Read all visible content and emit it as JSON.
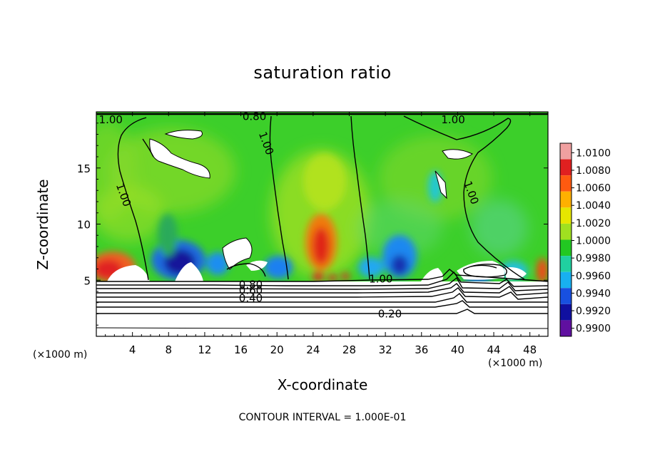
{
  "chart_data": {
    "type": "heatmap",
    "title": "saturation ratio",
    "xlabel": "X-coordinate",
    "ylabel": "Z-coordinate",
    "x_unit_label": "(×1000 m)",
    "x_unit_label_right": "(×1000 m)",
    "xlim": [
      0,
      50
    ],
    "ylim": [
      0,
      20
    ],
    "x_ticks": [
      4,
      8,
      12,
      16,
      20,
      24,
      28,
      32,
      36,
      40,
      44,
      48
    ],
    "y_ticks": [
      5,
      10,
      15
    ],
    "colorbar": {
      "levels": [
        "1.0100",
        "1.0080",
        "1.0060",
        "1.0040",
        "1.0020",
        "1.0000",
        "0.9980",
        "0.9960",
        "0.9940",
        "0.9920",
        "0.9900"
      ],
      "colors": [
        "#f0a0a0",
        "#e02020",
        "#ff5a10",
        "#ffb000",
        "#e6e600",
        "#a0e020",
        "#22c822",
        "#20d0a0",
        "#18b0f0",
        "#1850e0",
        "#1010a0",
        "#6010a0"
      ]
    },
    "contour_labels": [
      {
        "text": "1.00",
        "x": 1.6,
        "z": 19.3
      },
      {
        "text": "0.80",
        "x": 17.5,
        "z": 19.6
      },
      {
        "text": "1.00",
        "x": 18.8,
        "z": 17.2
      },
      {
        "text": "1.00",
        "x": 39.5,
        "z": 19.3
      },
      {
        "text": "1.00",
        "x": 3.0,
        "z": 12.6
      },
      {
        "text": "1.00",
        "x": 41.5,
        "z": 12.8
      },
      {
        "text": "1.00",
        "x": 31.5,
        "z": 5.1
      },
      {
        "text": "0.80",
        "x": 17.1,
        "z": 4.6
      },
      {
        "text": "0.60",
        "x": 17.1,
        "z": 4.1
      },
      {
        "text": "0.40",
        "x": 17.1,
        "z": 3.4
      },
      {
        "text": "0.20",
        "x": 32.5,
        "z": 2.0
      }
    ],
    "contour_interval_note": "CONTOUR INTERVAL = 1.000E-01"
  }
}
